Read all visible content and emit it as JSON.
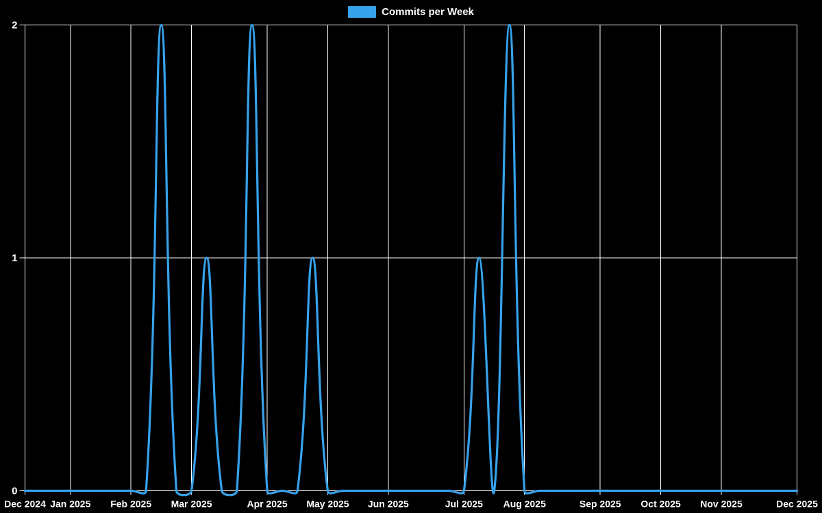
{
  "legend": {
    "label": "Commits per Week",
    "position": "top"
  },
  "colors": {
    "background": "#000000",
    "grid": "#ffffff",
    "text": "#ffffff",
    "line": "#36a2eb"
  },
  "chart_data": {
    "type": "line",
    "title": "Commits per Week",
    "xlabel": "",
    "ylabel": "",
    "x_unit": "week",
    "ylim": [
      0,
      2
    ],
    "grid": true,
    "legend_position": "top",
    "y_ticks": [
      "0",
      "1",
      "2"
    ],
    "y_tick_values": [
      0,
      1,
      2
    ],
    "x_tick_labels": [
      "Dec 2024",
      "Jan 2025",
      "Feb 2025",
      "Mar 2025",
      "Apr 2025",
      "May 2025",
      "Jun 2025",
      "Jul 2025",
      "Aug 2025",
      "Sep 2025",
      "Oct 2025",
      "Nov 2025",
      "Dec 2025"
    ],
    "x_tick_week_positions": [
      0,
      3,
      7,
      11,
      16,
      20,
      24,
      29,
      33,
      38,
      42,
      46,
      51
    ],
    "series": [
      {
        "name": "Commits per Week",
        "color": "#36a2eb",
        "values": [
          0,
          0,
          0,
          0,
          0,
          0,
          0,
          0,
          0,
          2,
          0,
          0,
          1,
          0,
          0,
          2,
          0,
          0,
          0,
          1,
          0,
          0,
          0,
          0,
          0,
          0,
          0,
          0,
          0,
          0,
          1,
          0,
          2,
          0,
          0,
          0,
          0,
          0,
          0,
          0,
          0,
          0,
          0,
          0,
          0,
          0,
          0,
          0,
          0,
          0,
          0,
          0
        ]
      }
    ]
  }
}
